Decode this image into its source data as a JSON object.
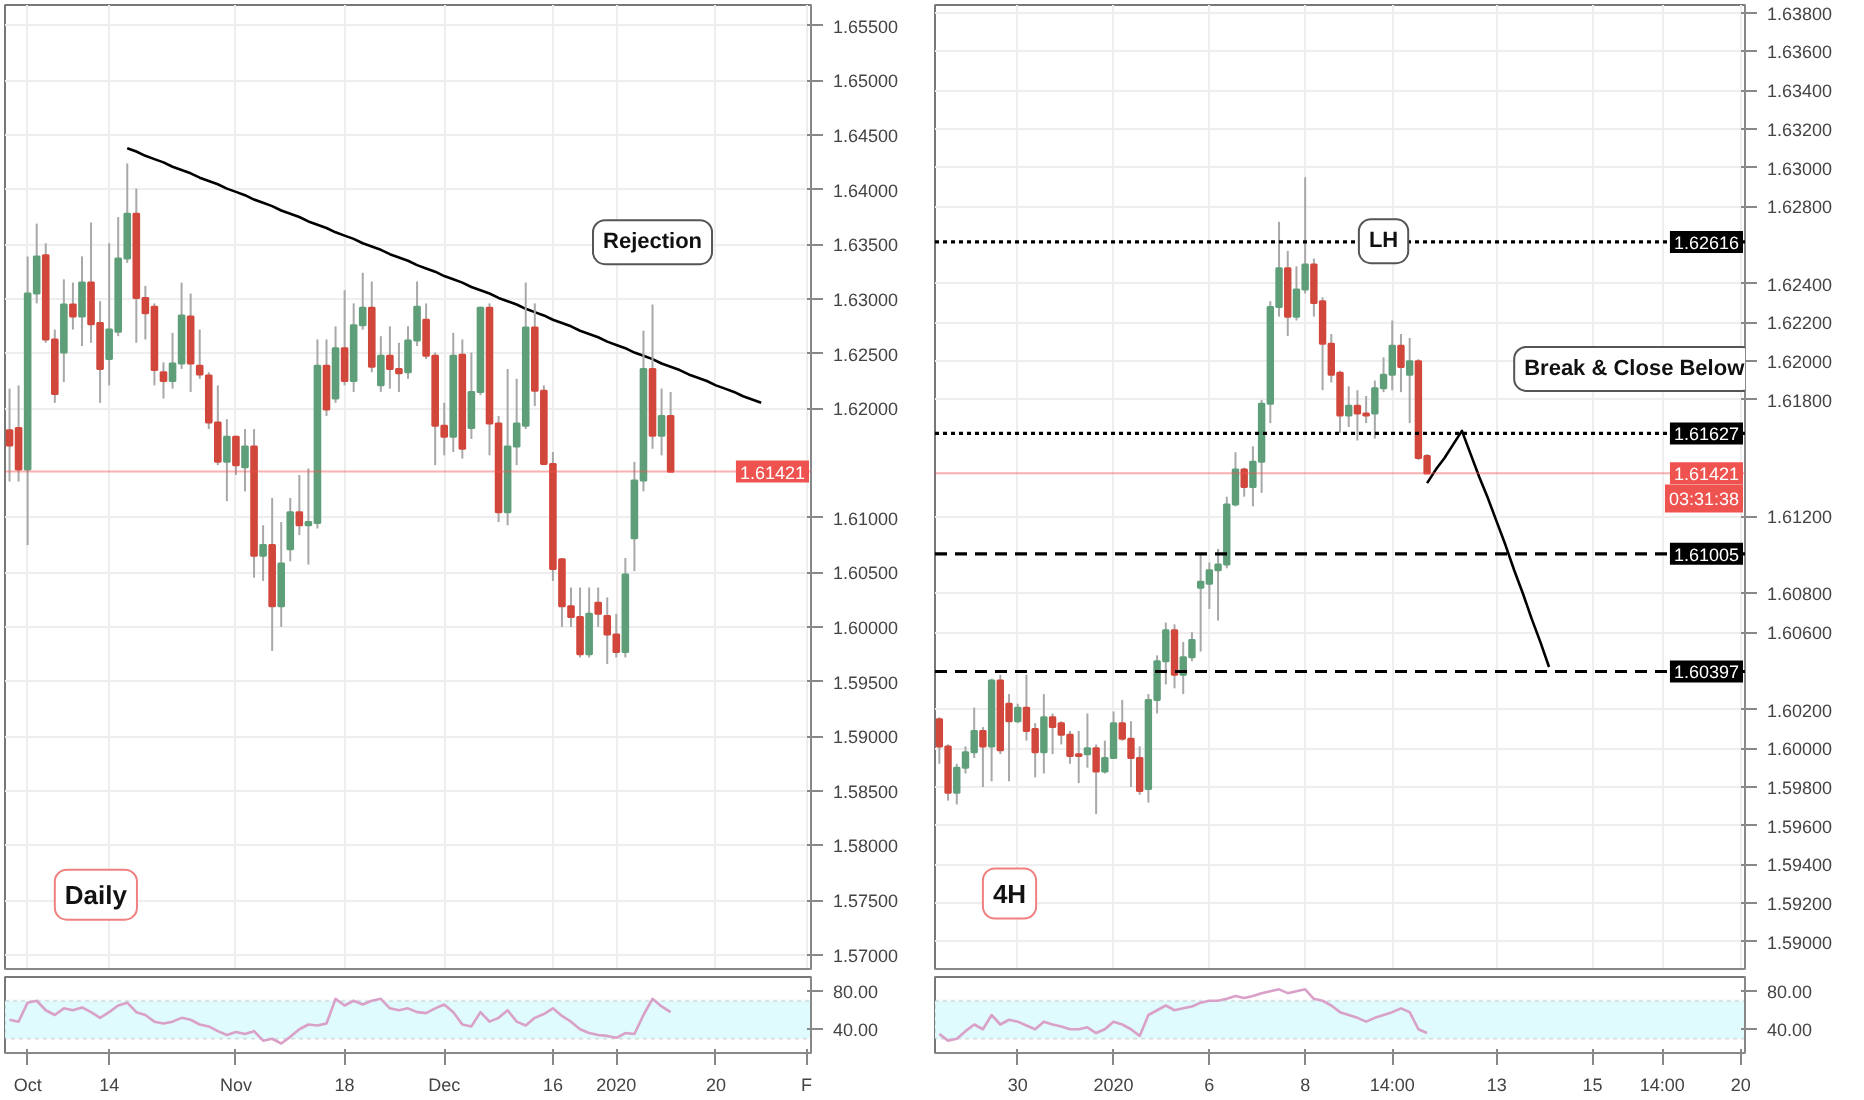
{
  "chart_data": [
    {
      "type": "candlestick",
      "categories": [
        null,
        null,
        null,
        null,
        null,
        null,
        null,
        null,
        null,
        null,
        null,
        null,
        null,
        null,
        null,
        null,
        null,
        null,
        null,
        null,
        null,
        null,
        null,
        null,
        null,
        null,
        null,
        null,
        null,
        null,
        null,
        null,
        null,
        null,
        null,
        null,
        null,
        null,
        null,
        null,
        null,
        null,
        null,
        null,
        null,
        null,
        null,
        null,
        null,
        null,
        null,
        null,
        null,
        null,
        null,
        null,
        null,
        null,
        null,
        null,
        null,
        null,
        null,
        null,
        null,
        null,
        null,
        null,
        null,
        null,
        null,
        null,
        null,
        null,
        null,
        null,
        null,
        null,
        null,
        null,
        null,
        null,
        null,
        null,
        null,
        null,
        null,
        null,
        null
      ],
      "ohlc": [
        [
          1.618,
          1.6218,
          1.6133,
          1.6166
        ],
        [
          1.6182,
          1.6221,
          1.6133,
          1.6144
        ],
        [
          1.6144,
          1.6339,
          1.6075,
          1.6305
        ],
        [
          1.6305,
          1.6369,
          1.6296,
          1.6339
        ],
        [
          1.634,
          1.6351,
          1.626,
          1.6263
        ],
        [
          1.6263,
          1.6272,
          1.6205,
          1.6213
        ],
        [
          1.6251,
          1.6318,
          1.6224,
          1.6295
        ],
        [
          1.6295,
          1.6315,
          1.6272,
          1.6284
        ],
        [
          1.6284,
          1.6339,
          1.6257,
          1.6315
        ],
        [
          1.6315,
          1.637,
          1.626,
          1.6277
        ],
        [
          1.6278,
          1.6298,
          1.6205,
          1.6236
        ],
        [
          1.6245,
          1.6351,
          1.6221,
          1.6272
        ],
        [
          1.627,
          1.6375,
          1.6266,
          1.6337
        ],
        [
          1.6337,
          1.6424,
          1.6333,
          1.6378
        ],
        [
          1.6378,
          1.6401,
          1.626,
          1.6301
        ],
        [
          1.6301,
          1.6312,
          1.6263,
          1.6287
        ],
        [
          1.6293,
          1.6296,
          1.6221,
          1.6235
        ],
        [
          1.6233,
          1.6242,
          1.6209,
          1.6225
        ],
        [
          1.6225,
          1.6269,
          1.6218,
          1.6241
        ],
        [
          1.6241,
          1.6315,
          1.6236,
          1.6285
        ],
        [
          1.6284,
          1.6305,
          1.6215,
          1.6241
        ],
        [
          1.6239,
          1.6272,
          1.6227,
          1.6231
        ],
        [
          1.623,
          1.6233,
          1.6181,
          1.6187
        ],
        [
          1.6187,
          1.6221,
          1.6148,
          1.6151
        ],
        [
          1.6151,
          1.619,
          1.6115,
          1.6174
        ],
        [
          1.6174,
          1.6175,
          1.6139,
          1.6148
        ],
        [
          1.6146,
          1.6181,
          1.6124,
          1.6165
        ],
        [
          1.6165,
          1.6181,
          1.6045,
          1.6065
        ],
        [
          1.6065,
          1.6093,
          1.6042,
          1.6075
        ],
        [
          1.6075,
          1.6118,
          1.5978,
          1.6019
        ],
        [
          1.6019,
          1.6096,
          1.6,
          1.6058
        ],
        [
          1.6071,
          1.6118,
          1.606,
          1.6105
        ],
        [
          1.6105,
          1.6139,
          1.6084,
          1.6093
        ],
        [
          1.6093,
          1.6145,
          1.6057,
          1.6096
        ],
        [
          1.6095,
          1.6263,
          1.609,
          1.6239
        ],
        [
          1.6239,
          1.6263,
          1.6193,
          1.6199
        ],
        [
          1.6209,
          1.6275,
          1.6205,
          1.6255
        ],
        [
          1.6255,
          1.6308,
          1.6221,
          1.6225
        ],
        [
          1.6225,
          1.6296,
          1.6215,
          1.6276
        ],
        [
          1.6276,
          1.6324,
          1.6272,
          1.6292
        ],
        [
          1.6292,
          1.6316,
          1.6233,
          1.6238
        ],
        [
          1.6221,
          1.6266,
          1.6215,
          1.6248
        ],
        [
          1.6248,
          1.6275,
          1.6218,
          1.6236
        ],
        [
          1.6236,
          1.626,
          1.6215,
          1.6232
        ],
        [
          1.6233,
          1.6275,
          1.6227,
          1.6262
        ],
        [
          1.6262,
          1.6316,
          1.6257,
          1.6293
        ],
        [
          1.6281,
          1.6296,
          1.6245,
          1.6248
        ],
        [
          1.6248,
          1.6251,
          1.6148,
          1.6184
        ],
        [
          1.6184,
          1.6205,
          1.6157,
          1.6174
        ],
        [
          1.6174,
          1.6269,
          1.616,
          1.6248
        ],
        [
          1.6249,
          1.6263,
          1.6154,
          1.6163
        ],
        [
          1.6182,
          1.6251,
          1.6172,
          1.6215
        ],
        [
          1.6215,
          1.6293,
          1.6212,
          1.6292
        ],
        [
          1.6292,
          1.6296,
          1.6157,
          1.6186
        ],
        [
          1.6186,
          1.6193,
          1.6096,
          1.6105
        ],
        [
          1.6105,
          1.6236,
          1.6093,
          1.6165
        ],
        [
          1.6165,
          1.6227,
          1.6148,
          1.6186
        ],
        [
          1.6184,
          1.6315,
          1.6181,
          1.6274
        ],
        [
          1.6274,
          1.6296,
          1.6202,
          1.6216
        ],
        [
          1.6216,
          1.6221,
          1.6148,
          1.6149
        ],
        [
          1.6149,
          1.616,
          1.6042,
          1.6053
        ],
        [
          1.6062,
          1.6063,
          1.6,
          1.6019
        ],
        [
          1.6019,
          1.6036,
          1.6,
          1.6009
        ],
        [
          1.6009,
          1.6036,
          1.5972,
          1.5975
        ],
        [
          1.5975,
          1.6036,
          1.5972,
          1.6012
        ],
        [
          1.6022,
          1.6036,
          1.6,
          1.6012
        ],
        [
          1.601,
          1.6027,
          1.5966,
          1.5993
        ],
        [
          1.5993,
          1.6012,
          1.5972,
          1.5977
        ],
        [
          1.5977,
          1.6063,
          1.5972,
          1.6048
        ],
        [
          1.6081,
          1.6151,
          1.6051,
          1.6134
        ],
        [
          1.6134,
          1.6271,
          1.6124,
          1.6236
        ],
        [
          1.6236,
          1.6295,
          1.6163,
          1.6175
        ],
        [
          1.6175,
          1.6218,
          1.6157,
          1.6193
        ],
        [
          1.6193,
          1.6215,
          1.6142,
          1.6142
        ],
        null,
        null,
        null,
        null,
        null,
        null,
        null,
        null,
        null,
        null,
        null,
        null,
        null,
        null,
        null
      ],
      "series": [
        {
          "type": "line",
          "color": "#000000",
          "values": [
            null,
            null,
            null,
            null,
            null,
            null,
            null,
            null,
            null,
            null,
            null,
            null,
            null,
            1.6438,
            1.6435,
            1.6431,
            1.6428,
            1.6425,
            1.6421,
            1.6418,
            1.6415,
            1.6411,
            1.6408,
            1.6405,
            1.6401,
            1.6398,
            1.6395,
            1.6391,
            1.6388,
            1.6385,
            1.6381,
            1.6378,
            1.6375,
            1.6371,
            1.6368,
            1.6365,
            1.6361,
            1.6358,
            1.6355,
            1.6351,
            1.6348,
            1.6345,
            1.6341,
            1.6338,
            1.6335,
            1.6331,
            1.6328,
            1.6325,
            1.6321,
            1.6318,
            1.6315,
            1.6311,
            1.6308,
            1.6305,
            1.6301,
            1.6298,
            1.6295,
            1.6291,
            1.6288,
            1.6285,
            1.6281,
            1.6278,
            1.6275,
            1.6271,
            1.6268,
            1.6265,
            1.6261,
            1.6258,
            1.6255,
            1.6251,
            1.6248,
            1.6245,
            1.6241,
            1.6238,
            1.6235,
            1.6231,
            1.6228,
            1.6225,
            1.6221,
            1.6218,
            1.6215,
            1.6211,
            1.6208,
            1.6205,
            null,
            null,
            null,
            null,
            null
          ]
        }
      ],
      "ylim": [
        1.5687,
        1.6569
      ],
      "yticks": [
        {
          "value": 1.57,
          "label": "1.57000"
        },
        {
          "value": 1.575,
          "label": "1.57500"
        },
        {
          "value": 1.58,
          "label": "1.58000"
        },
        {
          "value": 1.585,
          "label": "1.58500"
        },
        {
          "value": 1.59,
          "label": "1.59000"
        },
        {
          "value": 1.595,
          "label": "1.59500"
        },
        {
          "value": 1.6,
          "label": "1.60000"
        },
        {
          "value": 1.605,
          "label": "1.60500"
        },
        {
          "value": 1.61,
          "label": "1.61000"
        },
        {
          "value": 1.62,
          "label": "1.62000"
        },
        {
          "value": 1.625,
          "label": "1.62500"
        },
        {
          "value": 1.63,
          "label": "1.63000"
        },
        {
          "value": 1.635,
          "label": "1.63500"
        },
        {
          "value": 1.64,
          "label": "1.64000"
        },
        {
          "value": 1.645,
          "label": "1.64500"
        },
        {
          "value": 1.65,
          "label": "1.65000"
        },
        {
          "value": 1.655,
          "label": "1.65500"
        }
      ],
      "ref_lines": [
        {
          "axis": "y",
          "value": 1.61421,
          "label": "1.61421",
          "color": "#ef5350",
          "line_style": "solid"
        }
      ],
      "tick_labels": "y",
      "grid": true,
      "annotations": [
        "Rejection",
        "Daily"
      ]
    },
    {
      "type": "candlestick",
      "categories": [
        null,
        null,
        null,
        null,
        null,
        null,
        null,
        null,
        null,
        null,
        null,
        null,
        null,
        null,
        null,
        null,
        null,
        null,
        null,
        null,
        null,
        null,
        null,
        null,
        null,
        null,
        null,
        null,
        null,
        null,
        null,
        null,
        null,
        null,
        null,
        null,
        null,
        null,
        null,
        null,
        null,
        null,
        null,
        null,
        null,
        null,
        null,
        null,
        null,
        null,
        null,
        null,
        null,
        null,
        null,
        null,
        null,
        null,
        null,
        null,
        null,
        null,
        null,
        null,
        null,
        null,
        null,
        null,
        null,
        null,
        null,
        null,
        null,
        null,
        null,
        null,
        null,
        null,
        null,
        null,
        null,
        null,
        null,
        null,
        null,
        null,
        null,
        null,
        null,
        null,
        null,
        null,
        null
      ],
      "ohlc": [
        [
          1.6015,
          1.6016,
          1.5992,
          1.6001
        ],
        [
          1.6001,
          1.6002,
          1.5973,
          1.5977
        ],
        [
          1.5977,
          1.5992,
          1.5971,
          1.599
        ],
        [
          1.599,
          1.6001,
          1.5987,
          1.5998
        ],
        [
          1.5998,
          1.6021,
          1.5995,
          1.6009
        ],
        [
          1.6009,
          1.6011,
          1.598,
          1.6001
        ],
        [
          1.6001,
          1.6036,
          1.5983,
          1.6035
        ],
        [
          1.6035,
          1.6038,
          1.5997,
          1.5999
        ],
        [
          1.6023,
          1.6028,
          1.5983,
          1.6014
        ],
        [
          1.6014,
          1.6023,
          1.6013,
          1.6021
        ],
        [
          1.6021,
          1.6038,
          1.6004,
          1.6009
        ],
        [
          1.601,
          1.6013,
          1.5985,
          1.5998
        ],
        [
          1.5998,
          1.6028,
          1.5987,
          1.6016
        ],
        [
          1.6016,
          1.6018,
          1.5997,
          1.6011
        ],
        [
          1.6013,
          1.6014,
          1.6002,
          1.6007
        ],
        [
          1.6007,
          1.6009,
          1.5992,
          1.5996
        ],
        [
          1.5997,
          1.6009,
          1.5982,
          1.5996
        ],
        [
          1.5997,
          1.6018,
          1.599,
          1.6
        ],
        [
          1.6,
          1.6002,
          1.5966,
          1.5988
        ],
        [
          1.5988,
          1.6004,
          1.5987,
          1.5995
        ],
        [
          1.5995,
          1.6019,
          1.5995,
          1.6013
        ],
        [
          1.6013,
          1.6025,
          1.6004,
          1.6005
        ],
        [
          1.6005,
          1.6014,
          1.598,
          1.5995
        ],
        [
          1.5995,
          1.6001,
          1.5976,
          1.5978
        ],
        [
          1.5979,
          1.6028,
          1.5972,
          1.6025
        ],
        [
          1.6025,
          1.6048,
          1.6018,
          1.6045
        ],
        [
          1.6045,
          1.6065,
          1.6033,
          1.6061
        ],
        [
          1.6061,
          1.6064,
          1.6031,
          1.6038
        ],
        [
          1.6038,
          1.6055,
          1.6028,
          1.6047
        ],
        [
          1.6047,
          1.606,
          1.6045,
          1.6056
        ],
        [
          1.6083,
          1.6101,
          1.605,
          1.6086
        ],
        [
          1.6085,
          1.6096,
          1.6072,
          1.6092
        ],
        [
          1.6092,
          1.6103,
          1.6066,
          1.6095
        ],
        [
          1.6095,
          1.613,
          1.6093,
          1.6126
        ],
        [
          1.6126,
          1.6153,
          1.6125,
          1.6144
        ],
        [
          1.6144,
          1.6145,
          1.613,
          1.6135
        ],
        [
          1.6135,
          1.6156,
          1.6125,
          1.6148
        ],
        [
          1.6148,
          1.618,
          1.6132,
          1.6178
        ],
        [
          1.6178,
          1.6231,
          1.6168,
          1.6228
        ],
        [
          1.6228,
          1.6272,
          1.6223,
          1.6248
        ],
        [
          1.6248,
          1.6257,
          1.6213,
          1.6223
        ],
        [
          1.6223,
          1.6249,
          1.6221,
          1.6237
        ],
        [
          1.6237,
          1.6295,
          1.6235,
          1.625
        ],
        [
          1.625,
          1.6253,
          1.6223,
          1.623
        ],
        [
          1.6231,
          1.6233,
          1.6185,
          1.6209
        ],
        [
          1.6209,
          1.6214,
          1.6189,
          1.6193
        ],
        [
          1.6194,
          1.6195,
          1.6163,
          1.6172
        ],
        [
          1.6172,
          1.6187,
          1.6166,
          1.6177
        ],
        [
          1.6177,
          1.6185,
          1.6159,
          1.6173
        ],
        [
          1.6173,
          1.6182,
          1.6168,
          1.6172
        ],
        [
          1.6173,
          1.619,
          1.616,
          1.6186
        ],
        [
          1.6186,
          1.6202,
          1.6184,
          1.6193
        ],
        [
          1.6193,
          1.6221,
          1.6185,
          1.6208
        ],
        [
          1.6208,
          1.6214,
          1.6184,
          1.6197
        ],
        [
          1.6193,
          1.6212,
          1.6168,
          1.62
        ],
        [
          1.62,
          1.6201,
          1.6149,
          1.615
        ],
        [
          1.6151,
          1.6152,
          1.6142,
          1.6142
        ],
        null,
        null,
        null,
        null,
        null,
        null,
        null,
        null,
        null,
        null,
        null,
        null,
        null,
        null,
        null,
        null,
        null,
        null,
        null,
        null,
        null,
        null,
        null,
        null,
        null,
        null,
        null,
        null,
        null,
        null,
        null,
        null,
        null,
        null,
        null,
        null
      ],
      "series": [
        {
          "type": "line",
          "color": "#000000",
          "values": [
            null,
            null,
            null,
            null,
            null,
            null,
            null,
            null,
            null,
            null,
            null,
            null,
            null,
            null,
            null,
            null,
            null,
            null,
            null,
            null,
            null,
            null,
            null,
            null,
            null,
            null,
            null,
            null,
            null,
            null,
            null,
            null,
            null,
            null,
            null,
            null,
            null,
            null,
            null,
            null,
            null,
            null,
            null,
            null,
            null,
            null,
            null,
            null,
            null,
            null,
            null,
            null,
            null,
            null,
            null,
            null,
            1.6137,
            1.6144,
            1.615,
            1.6157,
            1.6164,
            1.6152,
            1.614,
            1.6129,
            1.6117,
            1.6105,
            1.6092,
            1.608,
            1.6067,
            1.6055,
            1.6042,
            null,
            null,
            null,
            null,
            null,
            null,
            null,
            null,
            null,
            null,
            null,
            null,
            null,
            null,
            null,
            null,
            null,
            null,
            null,
            null,
            null,
            null
          ]
        }
      ],
      "ylim": [
        1.5886,
        1.6384
      ],
      "yticks": [
        {
          "value": 1.59,
          "label": "1.59000"
        },
        {
          "value": 1.592,
          "label": "1.59200"
        },
        {
          "value": 1.594,
          "label": "1.59400"
        },
        {
          "value": 1.596,
          "label": "1.59600"
        },
        {
          "value": 1.598,
          "label": "1.59800"
        },
        {
          "value": 1.6,
          "label": "1.60000"
        },
        {
          "value": 1.602,
          "label": "1.60200"
        },
        {
          "value": 1.606,
          "label": "1.60600"
        },
        {
          "value": 1.608,
          "label": "1.60800"
        },
        {
          "value": 1.612,
          "label": "1.61200"
        },
        {
          "value": 1.618,
          "label": "1.61800"
        },
        {
          "value": 1.62,
          "label": "1.62000"
        },
        {
          "value": 1.622,
          "label": "1.62200"
        },
        {
          "value": 1.624,
          "label": "1.62400"
        },
        {
          "value": 1.628,
          "label": "1.62800"
        },
        {
          "value": 1.63,
          "label": "1.63000"
        },
        {
          "value": 1.632,
          "label": "1.63200"
        },
        {
          "value": 1.634,
          "label": "1.63400"
        },
        {
          "value": 1.636,
          "label": "1.63600"
        },
        {
          "value": 1.638,
          "label": "1.63800"
        }
      ],
      "ref_lines": [
        {
          "axis": "y",
          "value": 1.62616,
          "label": "1.62616",
          "color": "#000000",
          "line_style": "dotted"
        },
        {
          "axis": "y",
          "value": 1.61627,
          "label": "1.61627",
          "color": "#000000",
          "line_style": "dotted"
        },
        {
          "axis": "y",
          "value": 1.61005,
          "label": "1.61005",
          "color": "#000000",
          "line_style": "dashed"
        },
        {
          "axis": "y",
          "value": 1.60397,
          "label": "1.60397",
          "color": "#000000",
          "line_style": "dashed"
        },
        {
          "axis": "y",
          "value": 1.61421,
          "label": "1.61421",
          "color": "#ef5350",
          "line_style": "solid"
        }
      ],
      "tick_labels": "y",
      "grid": true,
      "annotations": [
        "LH",
        "Break & Close Below",
        "4H",
        "03:31:38"
      ]
    },
    {
      "type": "line",
      "categories": [
        null,
        null,
        "Oct",
        null,
        null,
        null,
        null,
        null,
        null,
        null,
        null,
        "14",
        null,
        null,
        null,
        null,
        null,
        null,
        null,
        null,
        null,
        null,
        null,
        null,
        null,
        "Nov",
        null,
        null,
        null,
        null,
        null,
        null,
        null,
        null,
        null,
        null,
        null,
        "18",
        null,
        null,
        null,
        null,
        null,
        null,
        null,
        null,
        null,
        null,
        "Dec",
        null,
        null,
        null,
        null,
        null,
        null,
        null,
        null,
        null,
        null,
        null,
        "16",
        null,
        null,
        null,
        null,
        null,
        null,
        "2020",
        null,
        null,
        null,
        null,
        null,
        null,
        null,
        null,
        null,
        null,
        "20",
        null,
        null,
        null,
        null,
        null,
        null,
        null,
        null,
        null,
        "F"
      ],
      "values": [
        50,
        48,
        68,
        70,
        60,
        55,
        62,
        60,
        63,
        58,
        52,
        58,
        65,
        68,
        58,
        55,
        48,
        46,
        48,
        52,
        50,
        45,
        43,
        38,
        34,
        37,
        35,
        38,
        28,
        30,
        25,
        32,
        40,
        45,
        44,
        46,
        72,
        65,
        70,
        66,
        70,
        72,
        62,
        60,
        62,
        58,
        57,
        62,
        66,
        58,
        45,
        43,
        58,
        48,
        52,
        60,
        48,
        44,
        52,
        56,
        62,
        54,
        48,
        40,
        36,
        34,
        33,
        31,
        36,
        35,
        55,
        72,
        64,
        58,
        null,
        null,
        null,
        null,
        null,
        null,
        null,
        null,
        null,
        null,
        null,
        null,
        null,
        null,
        null
      ],
      "color": "#d9a0c8",
      "ylim": [
        15,
        95
      ],
      "yticks": [
        {
          "value": 40,
          "label": "40.00"
        },
        {
          "value": 80,
          "label": "80.00"
        }
      ],
      "bands": [
        {
          "axis": "y",
          "from": 30,
          "to": 70,
          "color": "#e0fbfd"
        }
      ]
    },
    {
      "type": "line",
      "categories": [
        null,
        null,
        null,
        null,
        null,
        null,
        null,
        null,
        null,
        "30",
        null,
        null,
        null,
        null,
        null,
        null,
        null,
        null,
        null,
        null,
        "2020",
        null,
        null,
        null,
        null,
        null,
        null,
        null,
        null,
        null,
        null,
        "6",
        null,
        null,
        null,
        null,
        null,
        null,
        null,
        null,
        null,
        null,
        "8",
        null,
        null,
        null,
        null,
        null,
        null,
        null,
        null,
        null,
        "14:00",
        null,
        null,
        null,
        null,
        null,
        null,
        null,
        null,
        null,
        null,
        null,
        "13",
        null,
        null,
        null,
        null,
        null,
        null,
        null,
        null,
        null,
        null,
        "15",
        null,
        null,
        null,
        null,
        null,
        null,
        null,
        "14:00",
        null,
        null,
        null,
        null,
        null,
        null,
        null,
        null,
        "20"
      ],
      "values": [
        35,
        28,
        30,
        38,
        45,
        40,
        55,
        45,
        50,
        48,
        44,
        40,
        48,
        45,
        43,
        40,
        40,
        42,
        36,
        40,
        48,
        45,
        40,
        33,
        55,
        60,
        65,
        60,
        62,
        64,
        68,
        70,
        70,
        72,
        75,
        73,
        75,
        78,
        80,
        82,
        78,
        80,
        82,
        72,
        70,
        65,
        58,
        55,
        52,
        48,
        52,
        55,
        58,
        62,
        58,
        40,
        36,
        null,
        null,
        null,
        null,
        null,
        null,
        null,
        null,
        null,
        null,
        null,
        null,
        null,
        null,
        null,
        null,
        null,
        null,
        null,
        null,
        null,
        null,
        null,
        null,
        null,
        null,
        null,
        null,
        null,
        null,
        null,
        null,
        null,
        null,
        null,
        null
      ],
      "color": "#d9a0c8",
      "ylim": [
        15,
        95
      ],
      "yticks": [
        {
          "value": 40,
          "label": "40.00"
        },
        {
          "value": 80,
          "label": "80.00"
        }
      ],
      "bands": [
        {
          "axis": "y",
          "from": 30,
          "to": 70,
          "color": "#e0fbfd"
        }
      ]
    }
  ]
}
